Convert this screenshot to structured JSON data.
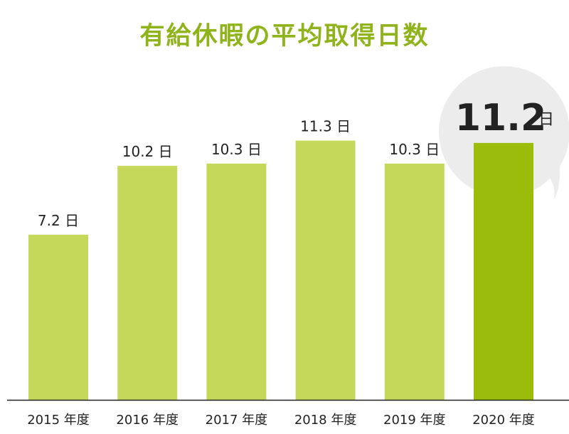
{
  "chart_data": {
    "type": "bar",
    "title": "有給休暇の平均取得日数",
    "categories": [
      "2015 年度",
      "2016 年度",
      "2017 年度",
      "2018 年度",
      "2019 年度",
      "2020 年度"
    ],
    "values": [
      7.2,
      10.2,
      10.3,
      11.3,
      10.3,
      11.2
    ],
    "value_labels": [
      "7.2 日",
      "10.2 日",
      "10.3 日",
      "11.3 日",
      "10.3 日",
      "11.2"
    ],
    "highlight_unit": "日",
    "highlight_index": 5,
    "ylim": [
      0,
      16.5
    ],
    "grid": false,
    "xlabel": "",
    "ylabel": "",
    "colors": {
      "bar": "#c5d85a",
      "highlight_bar": "#9bbc0b",
      "title": "#8fb31a",
      "bubble": "#ececec",
      "axis": "#222222"
    }
  }
}
